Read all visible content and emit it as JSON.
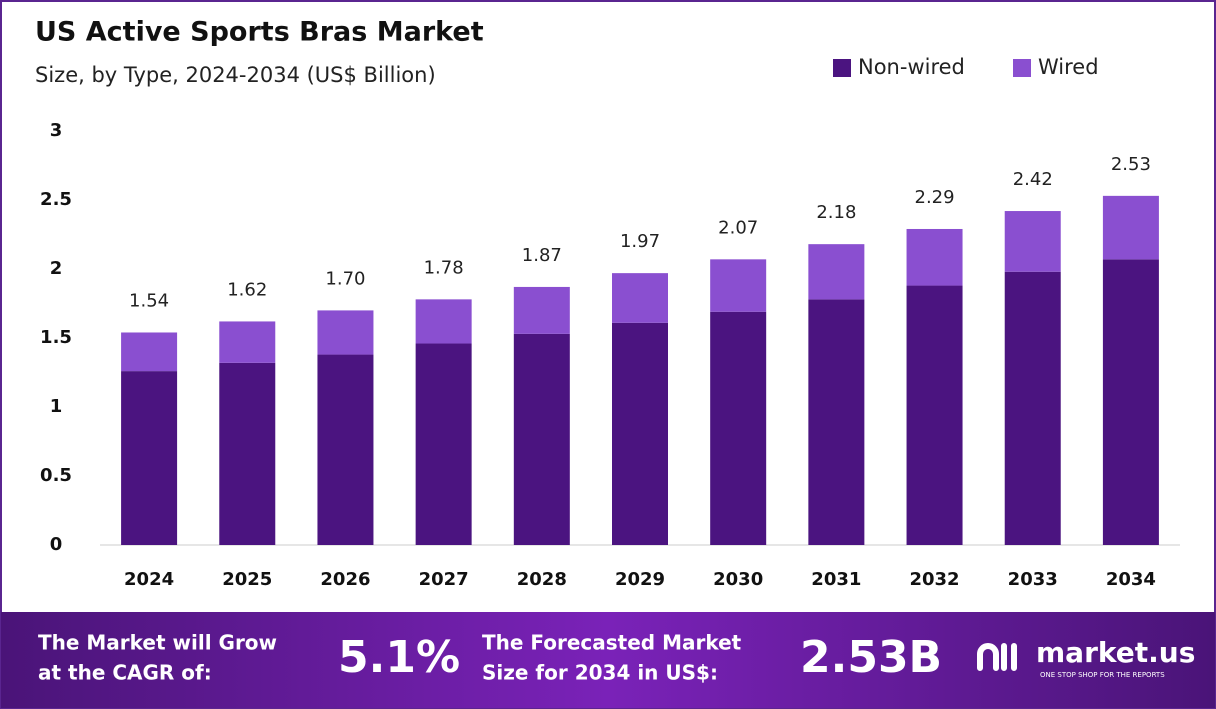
{
  "chart_data": {
    "type": "stacked_bar",
    "title": "US Active Sports Bras Market",
    "subtitle": "Size, by Type, 2024-2034 (US$ Billion)",
    "categories": [
      "2024",
      "2025",
      "2026",
      "2027",
      "2028",
      "2029",
      "2030",
      "2031",
      "2032",
      "2033",
      "2034"
    ],
    "series": [
      {
        "name": "Non-wired",
        "color": "#4b1480",
        "values": [
          1.26,
          1.32,
          1.38,
          1.46,
          1.53,
          1.61,
          1.69,
          1.78,
          1.88,
          1.98,
          2.07
        ]
      },
      {
        "name": "Wired",
        "color": "#8a4fd0",
        "values": [
          0.28,
          0.3,
          0.32,
          0.32,
          0.34,
          0.36,
          0.38,
          0.4,
          0.41,
          0.44,
          0.46
        ]
      }
    ],
    "totals": {
      "values": [
        1.54,
        1.62,
        1.7,
        1.78,
        1.87,
        1.97,
        2.07,
        2.18,
        2.29,
        2.42,
        2.53
      ],
      "value_labels": [
        "1.54",
        "1.62",
        "1.70",
        "1.78",
        "1.87",
        "1.97",
        "2.07",
        "2.18",
        "2.29",
        "2.42",
        "2.53"
      ]
    },
    "ylim": [
      0,
      3
    ],
    "yticks": [
      0,
      0.5,
      1,
      1.5,
      2,
      2.5,
      3
    ],
    "grid": false,
    "legend": "top-right"
  },
  "footer": {
    "cagr_label": [
      "The Market will Grow",
      "at the CAGR of:"
    ],
    "cagr": "5.1%",
    "forecast_label": [
      "The Forecasted Market",
      "Size for 2034 in US$:"
    ],
    "forecast": "2.53B",
    "brand": "market.us",
    "tagline": "ONE STOP SHOP FOR THE REPORTS"
  }
}
